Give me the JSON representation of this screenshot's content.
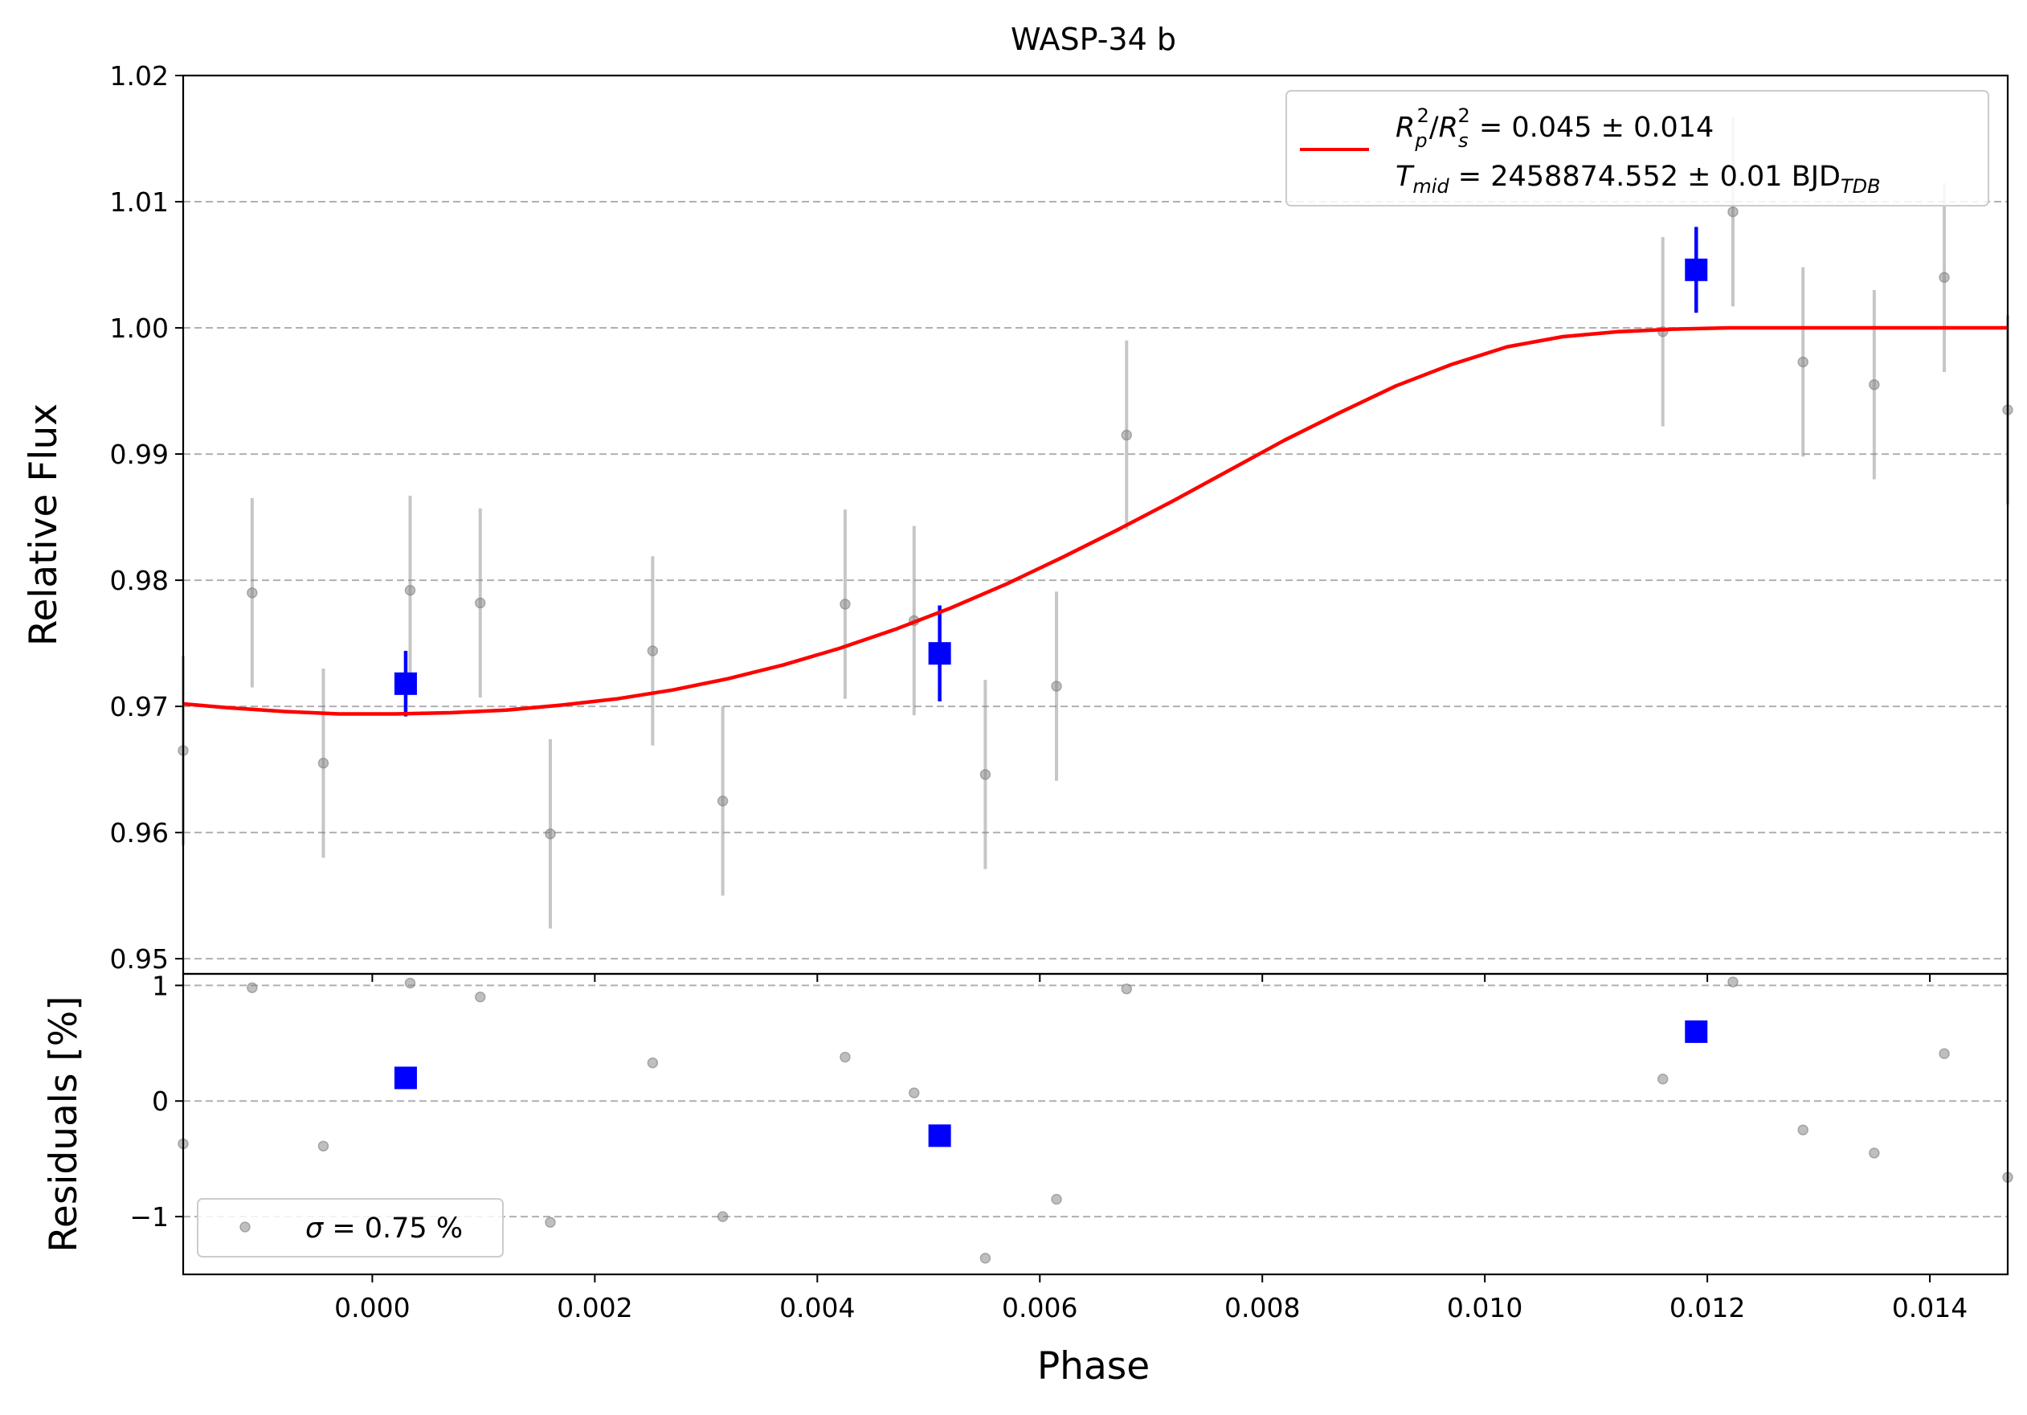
{
  "chart_data": [
    {
      "panel": "top",
      "type": "scatter",
      "title": "WASP-34 b",
      "ylabel": "Relative Flux",
      "xlim": [
        -0.0017,
        0.0147
      ],
      "ylim": [
        0.9488,
        1.02
      ],
      "yticks": [
        0.95,
        0.96,
        0.97,
        0.98,
        0.99,
        1.0,
        1.01,
        1.02
      ],
      "ytick_labels": [
        "0.95",
        "0.96",
        "0.97",
        "0.98",
        "0.99",
        "1.00",
        "1.01",
        "1.02"
      ],
      "grid": "y-dashed",
      "legend": {
        "position": "top-right",
        "line1": {
          "base": "R",
          "sub1": "p",
          "sup1": "2",
          "sep": "/",
          "base2": "R",
          "sub2": "s",
          "sup2": "2",
          "rest": " = 0.045 ± 0.014"
        },
        "line2": {
          "base": "T",
          "sub": "mid",
          "rest": " = 2458874.552 ± 0.01 BJD",
          "unit_sub": "TDB"
        }
      },
      "series": [
        {
          "kind": "raw",
          "color": "#808080",
          "x": [
            -0.0017,
            -0.00108,
            -0.00044,
            0.00034,
            0.00097,
            0.0016,
            0.00252,
            0.00315,
            0.00425,
            0.00487,
            0.00551,
            0.00615,
            0.00678,
            0.0116,
            0.01223,
            0.01286,
            0.0135,
            0.01413,
            0.0147
          ],
          "y": [
            0.9665,
            0.979,
            0.9655,
            0.9792,
            0.9782,
            0.9599,
            0.9744,
            0.9625,
            0.9781,
            0.9768,
            0.9646,
            0.9716,
            0.9915,
            0.9997,
            1.0092,
            0.9973,
            0.9955,
            1.004,
            0.9935
          ],
          "yerr": [
            0.0075,
            0.0075,
            0.0075,
            0.0075,
            0.0075,
            0.0075,
            0.0075,
            0.0075,
            0.0075,
            0.0075,
            0.0075,
            0.0075,
            0.0075,
            0.0075,
            0.0075,
            0.0075,
            0.0075,
            0.0075,
            0.0075
          ]
        },
        {
          "kind": "binned",
          "color": "#0000ff",
          "x": [
            0.0003,
            0.0051,
            0.0119
          ],
          "y": [
            0.9718,
            0.9742,
            1.0046
          ],
          "yerr": [
            0.0026,
            0.0038,
            0.0034
          ]
        },
        {
          "kind": "model",
          "color": "#ff0000",
          "x": [
            -0.0017,
            -0.0013,
            -0.0008,
            -0.0003,
            0.0002,
            0.0007,
            0.0012,
            0.0017,
            0.0022,
            0.0027,
            0.0032,
            0.0037,
            0.0042,
            0.0047,
            0.0052,
            0.0057,
            0.0062,
            0.0067,
            0.0072,
            0.0077,
            0.0082,
            0.0087,
            0.0092,
            0.0097,
            0.0102,
            0.0107,
            0.0112,
            0.0117,
            0.0122,
            0.0127,
            0.013,
            0.0135,
            0.0147
          ],
          "y": [
            0.9702,
            0.9699,
            0.9696,
            0.9694,
            0.9694,
            0.9695,
            0.9697,
            0.9701,
            0.9706,
            0.9713,
            0.9722,
            0.9733,
            0.9746,
            0.9761,
            0.9778,
            0.9797,
            0.9818,
            0.984,
            0.9863,
            0.9887,
            0.9911,
            0.9933,
            0.9954,
            0.9971,
            0.9985,
            0.9993,
            0.9997,
            0.9999,
            1.0,
            1.0,
            1.0,
            1.0,
            1.0
          ]
        }
      ]
    },
    {
      "panel": "bottom",
      "type": "scatter",
      "xlabel": "Phase",
      "ylabel": "Residuals [%]",
      "xlim": [
        -0.0017,
        0.0147
      ],
      "ylim": [
        -1.5,
        1.1
      ],
      "xticks": [
        0.0,
        0.002,
        0.004,
        0.006,
        0.008,
        0.01,
        0.012,
        0.014
      ],
      "xtick_labels": [
        "0.000",
        "0.002",
        "0.004",
        "0.006",
        "0.008",
        "0.010",
        "0.012",
        "0.014"
      ],
      "yticks": [
        -1,
        0,
        1
      ],
      "ytick_labels": [
        "−1",
        "0",
        "1"
      ],
      "grid": "y-dashed",
      "legend": {
        "position": "bottom-left",
        "symbol": "σ",
        "text": " = 0.75 %"
      },
      "series": [
        {
          "kind": "raw",
          "color": "#808080",
          "x": [
            -0.0017,
            -0.00108,
            -0.00044,
            0.00034,
            0.00097,
            0.0016,
            0.00252,
            0.00315,
            0.00425,
            0.00487,
            0.00551,
            0.00615,
            0.00678,
            0.0116,
            0.01223,
            0.01286,
            0.0135,
            0.01413,
            0.0147
          ],
          "y": [
            -0.37,
            0.98,
            -0.39,
            1.02,
            0.9,
            -1.05,
            0.33,
            -1.0,
            0.38,
            0.07,
            -1.36,
            -0.85,
            0.97,
            0.19,
            1.03,
            -0.25,
            -0.45,
            0.41,
            -0.66
          ]
        },
        {
          "kind": "binned",
          "color": "#0000ff",
          "x": [
            0.0003,
            0.0051,
            0.0119
          ],
          "y": [
            0.2,
            -0.3,
            0.6
          ]
        }
      ]
    }
  ]
}
